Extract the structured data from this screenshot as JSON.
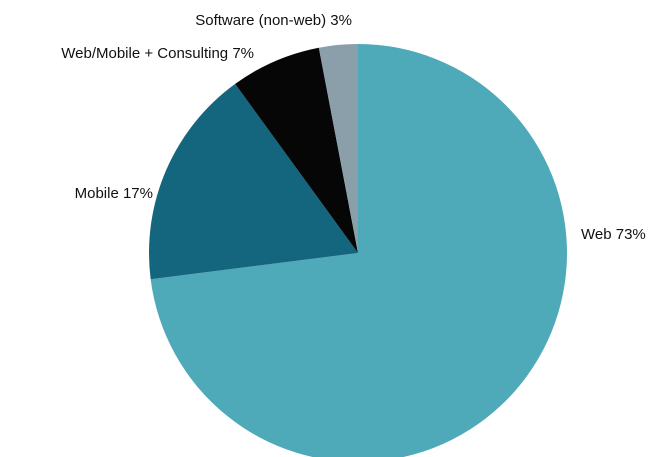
{
  "chart_data": {
    "type": "pie",
    "slices": [
      {
        "label": "Web",
        "value": 73,
        "display": "Web 73%",
        "color": "#4ea9b8"
      },
      {
        "label": "Mobile",
        "value": 17,
        "display": "Mobile 17%",
        "color": "#13667e"
      },
      {
        "label": "Web/Mobile + Consulting",
        "value": 7,
        "display": "Web/Mobile + Consulting 7%",
        "color": "#060606"
      },
      {
        "label": "Software (non-web)",
        "value": 3,
        "display": "Software (non-web) 3%",
        "color": "#8a9faa"
      }
    ],
    "start": "12 o'clock",
    "direction": "clockwise",
    "legend": "none"
  }
}
